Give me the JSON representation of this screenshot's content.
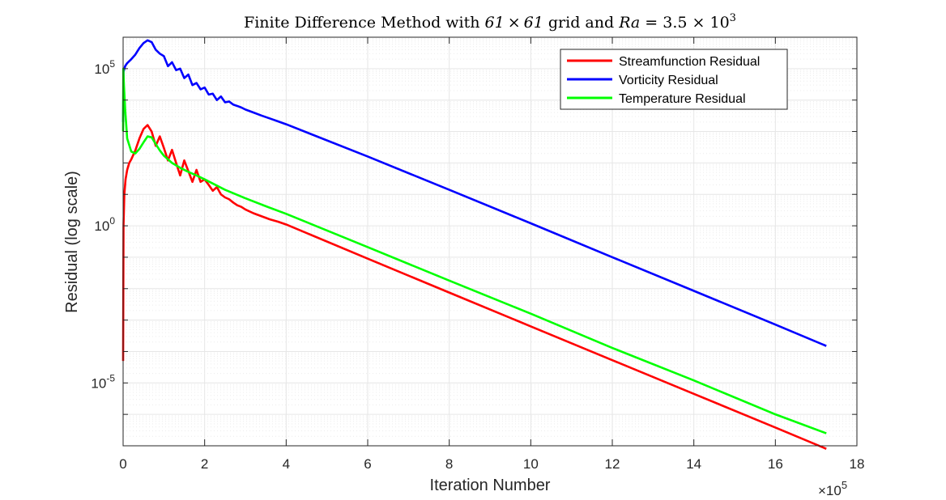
{
  "chart_data": {
    "type": "line",
    "title_parts": {
      "prefix": "Finite Difference Method with ",
      "grid_a": "61",
      "times1": "×",
      "grid_b": "61",
      "mid": " grid and ",
      "ra_var": "Ra",
      "equals": " = 3.5 ",
      "times2": "×",
      "ten": " 10",
      "exp": "3"
    },
    "xlabel": "Iteration Number",
    "ylabel": "Residual (log scale)",
    "x_multiplier": {
      "base": "×10",
      "exp": "5"
    },
    "x_ticks": [
      0,
      2,
      4,
      6,
      8,
      10,
      12,
      14,
      16,
      18
    ],
    "x_tick_labels": [
      "0",
      "2",
      "4",
      "6",
      "8",
      "10",
      "12",
      "14",
      "16",
      "18"
    ],
    "y_ticks_labeled": [
      {
        "value": 100000,
        "base": "10",
        "exp": "5"
      },
      {
        "value": 1,
        "base": "10",
        "exp": "0"
      },
      {
        "value": 1e-05,
        "base": "10",
        "exp": "-5"
      }
    ],
    "xlim": [
      0,
      18
    ],
    "ylim": [
      1e-07,
      1000000.0
    ],
    "y_scale": "log",
    "grid": true,
    "legend_position": "top-right",
    "x_units_note": "x values in units of 10^5 iterations",
    "series": [
      {
        "name": "Streamfunction Residual",
        "color": "#ff0000",
        "x": [
          0,
          0.01,
          0.03,
          0.06,
          0.1,
          0.15,
          0.2,
          0.3,
          0.4,
          0.5,
          0.6,
          0.7,
          0.8,
          0.9,
          1.0,
          1.1,
          1.2,
          1.3,
          1.4,
          1.5,
          1.6,
          1.7,
          1.8,
          1.9,
          2.0,
          2.1,
          2.2,
          2.3,
          2.4,
          2.5,
          2.6,
          2.7,
          2.8,
          2.9,
          3.0,
          3.2,
          3.4,
          3.6,
          3.8,
          4.0,
          6.0,
          8.0,
          10.0,
          12.0,
          14.0,
          16.0,
          17.25
        ],
        "y": [
          5e-05,
          1.0,
          10,
          30,
          60,
          100,
          130,
          250,
          600,
          1200,
          1600,
          1000,
          350,
          700,
          300,
          120,
          260,
          100,
          40,
          120,
          55,
          25,
          60,
          25,
          30,
          20,
          13,
          17,
          10,
          8,
          7,
          5.5,
          4.5,
          4,
          3.3,
          2.5,
          2.0,
          1.6,
          1.35,
          1.1,
          0.09,
          0.0075,
          0.00063,
          5.3e-05,
          4.5e-06,
          3.8e-07,
          8e-08
        ]
      },
      {
        "name": "Vorticity Residual",
        "color": "#0000ff",
        "x": [
          0,
          0.01,
          0.05,
          0.1,
          0.2,
          0.3,
          0.4,
          0.5,
          0.6,
          0.7,
          0.8,
          0.9,
          1.0,
          1.1,
          1.2,
          1.3,
          1.4,
          1.5,
          1.6,
          1.7,
          1.8,
          1.9,
          2.0,
          2.1,
          2.2,
          2.3,
          2.4,
          2.5,
          2.6,
          2.7,
          2.8,
          2.9,
          3.0,
          3.2,
          3.4,
          3.6,
          3.8,
          4.0,
          6.0,
          8.0,
          10.0,
          12.0,
          14.0,
          16.0,
          17.25
        ],
        "y": [
          2000,
          80000,
          120000,
          150000,
          200000,
          280000,
          450000,
          650000,
          800000,
          700000,
          400000,
          300000,
          250000,
          120000,
          160000,
          90000,
          100000,
          50000,
          65000,
          30000,
          35000,
          22000,
          25000,
          15000,
          16000,
          10000,
          13000,
          8500,
          9000,
          7200,
          6500,
          5800,
          5000,
          4000,
          3200,
          2600,
          2100,
          1700,
          160,
          14,
          1.2,
          0.1,
          0.0085,
          0.00072,
          0.00015
        ]
      },
      {
        "name": "Temperature Residual",
        "color": "#00ff00",
        "x": [
          0,
          0.005,
          0.02,
          0.05,
          0.1,
          0.2,
          0.3,
          0.4,
          0.5,
          0.6,
          0.7,
          0.8,
          0.9,
          1.0,
          1.2,
          1.4,
          1.6,
          1.8,
          2.0,
          2.5,
          3.0,
          3.5,
          4.0,
          6.0,
          8.0,
          10.0,
          12.0,
          14.0,
          16.0,
          17.25
        ],
        "y": [
          1000,
          100000,
          30000,
          5000,
          600,
          230,
          200,
          280,
          450,
          700,
          650,
          400,
          250,
          170,
          100,
          70,
          52,
          40,
          30,
          14,
          7.5,
          4.2,
          2.4,
          0.21,
          0.018,
          0.0016,
          0.00013,
          1.2e-05,
          1e-06,
          2.5e-07
        ]
      }
    ]
  }
}
